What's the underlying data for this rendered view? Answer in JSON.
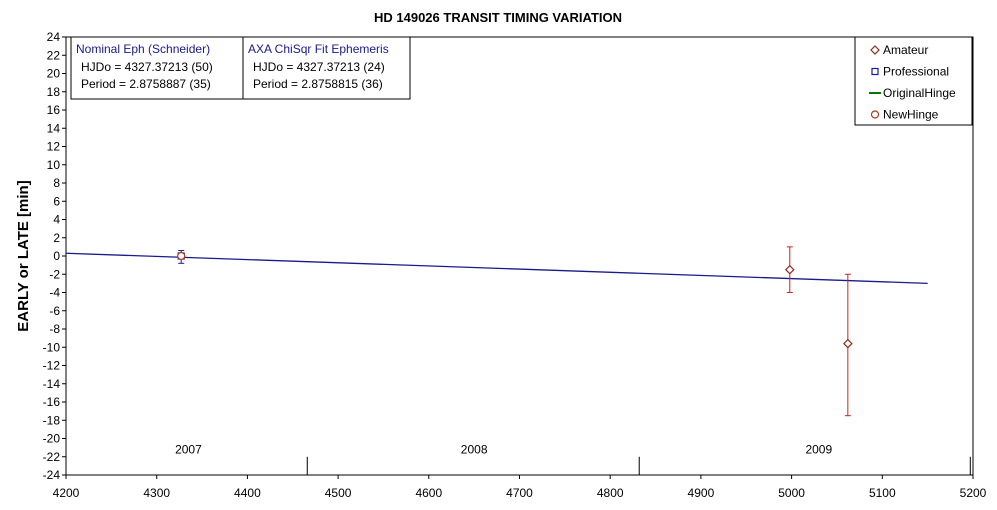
{
  "chart_data": {
    "type": "scatter",
    "title": "HD 149026 TRANSIT TIMING VARIATION",
    "ylabel": "EARLY or LATE [min]",
    "xlabel": "",
    "xlim": [
      4200,
      5200
    ],
    "ylim": [
      -24,
      24
    ],
    "x_ticks": [
      4200,
      4300,
      4400,
      4500,
      4600,
      4700,
      4800,
      4900,
      5000,
      5100,
      5200
    ],
    "y_ticks": [
      24,
      22,
      20,
      18,
      16,
      14,
      12,
      10,
      8,
      6,
      4,
      2,
      0,
      -2,
      -4,
      -6,
      -8,
      -10,
      -12,
      -14,
      -16,
      -18,
      -20,
      -22,
      -24
    ],
    "grid": true,
    "years": [
      {
        "label": "2007",
        "x": 4335
      },
      {
        "label": "2008",
        "x": 4650
      },
      {
        "label": "2009",
        "x": 5030
      }
    ],
    "year_boundaries": [
      4466,
      4832,
      5197
    ],
    "series": [
      {
        "name": "Amateur",
        "marker": "diamond",
        "color": "#8b2d1a",
        "errcolor": "#cc2222",
        "points": [
          {
            "x": 4998,
            "y": -1.5,
            "err_low": -4.0,
            "err_high": 1.0
          },
          {
            "x": 5062,
            "y": -9.6,
            "err_low": -17.5,
            "err_high": -2.0
          }
        ]
      },
      {
        "name": "Professional",
        "marker": "square",
        "color": "#1a1aa0",
        "errcolor": "#1a1aa0",
        "points": [
          {
            "x": 4327,
            "y": 0.0,
            "err_low": -0.8,
            "err_high": 0.6
          }
        ]
      },
      {
        "name": "OriginalHinge",
        "marker": "line",
        "color": "#007a00",
        "points": []
      },
      {
        "name": "NewHinge",
        "marker": "circle",
        "color": "#b0391e",
        "points": [
          {
            "x": 4327,
            "y": 0.0
          }
        ]
      }
    ],
    "trend_line": {
      "color": "#1a1a8c",
      "x": [
        4200,
        5150
      ],
      "y": [
        0.3,
        -3.0
      ]
    },
    "legend_position": "top-right",
    "ephemeris_boxes": [
      {
        "title": "Nominal Eph (Schneider)",
        "lines": [
          "HJDo = 4327.37213 (50)",
          "Period = 2.8758887 (35)"
        ]
      },
      {
        "title": "AXA ChiSqr Fit Ephemeris",
        "lines": [
          "HJDo = 4327.37213 (24)",
          "Period = 2.8758815 (36)"
        ]
      }
    ]
  }
}
